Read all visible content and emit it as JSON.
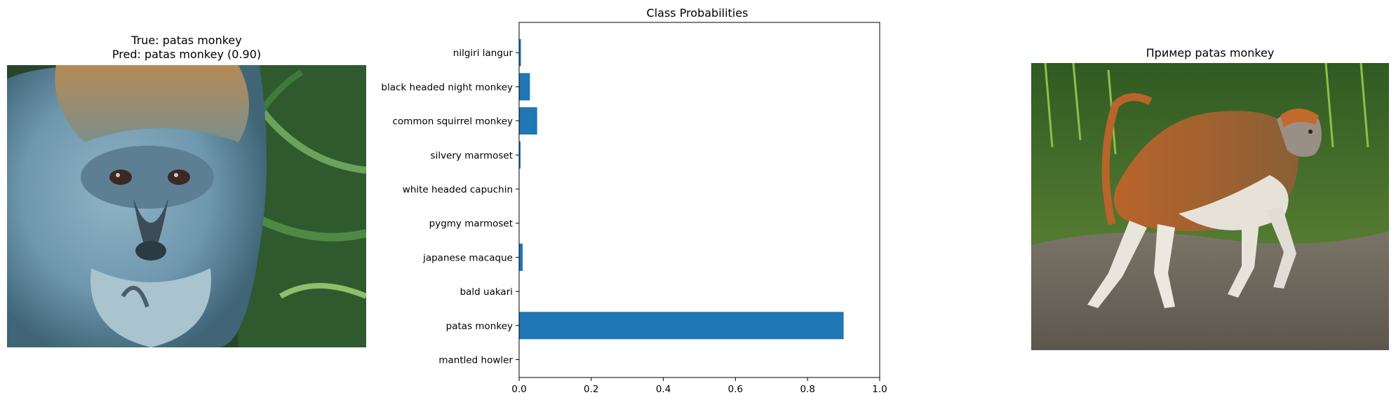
{
  "left_panel": {
    "title_line1": "True: patas monkey",
    "title_line2": "Pred: patas monkey (0.90)",
    "image_subject": "patas monkey face close-up"
  },
  "right_panel": {
    "title": "Пример patas monkey",
    "image_subject": "patas monkey walking on rock"
  },
  "chart_data": {
    "type": "bar",
    "orientation": "horizontal",
    "title": "Class Probabilities",
    "categories": [
      "mantled howler",
      "patas monkey",
      "bald uakari",
      "japanese macaque",
      "pygmy marmoset",
      "white headed capuchin",
      "silvery marmoset",
      "common squirrel monkey",
      "black headed night monkey",
      "nilgiri langur"
    ],
    "values": [
      0.0,
      0.9,
      0.0,
      0.01,
      0.0,
      0.0,
      0.004,
      0.05,
      0.03,
      0.005
    ],
    "xlim": [
      0,
      1.0
    ],
    "xticks": [
      "0.0",
      "0.2",
      "0.4",
      "0.6",
      "0.8",
      "1.0"
    ],
    "bar_color": "#1f77b4",
    "grid": false
  }
}
